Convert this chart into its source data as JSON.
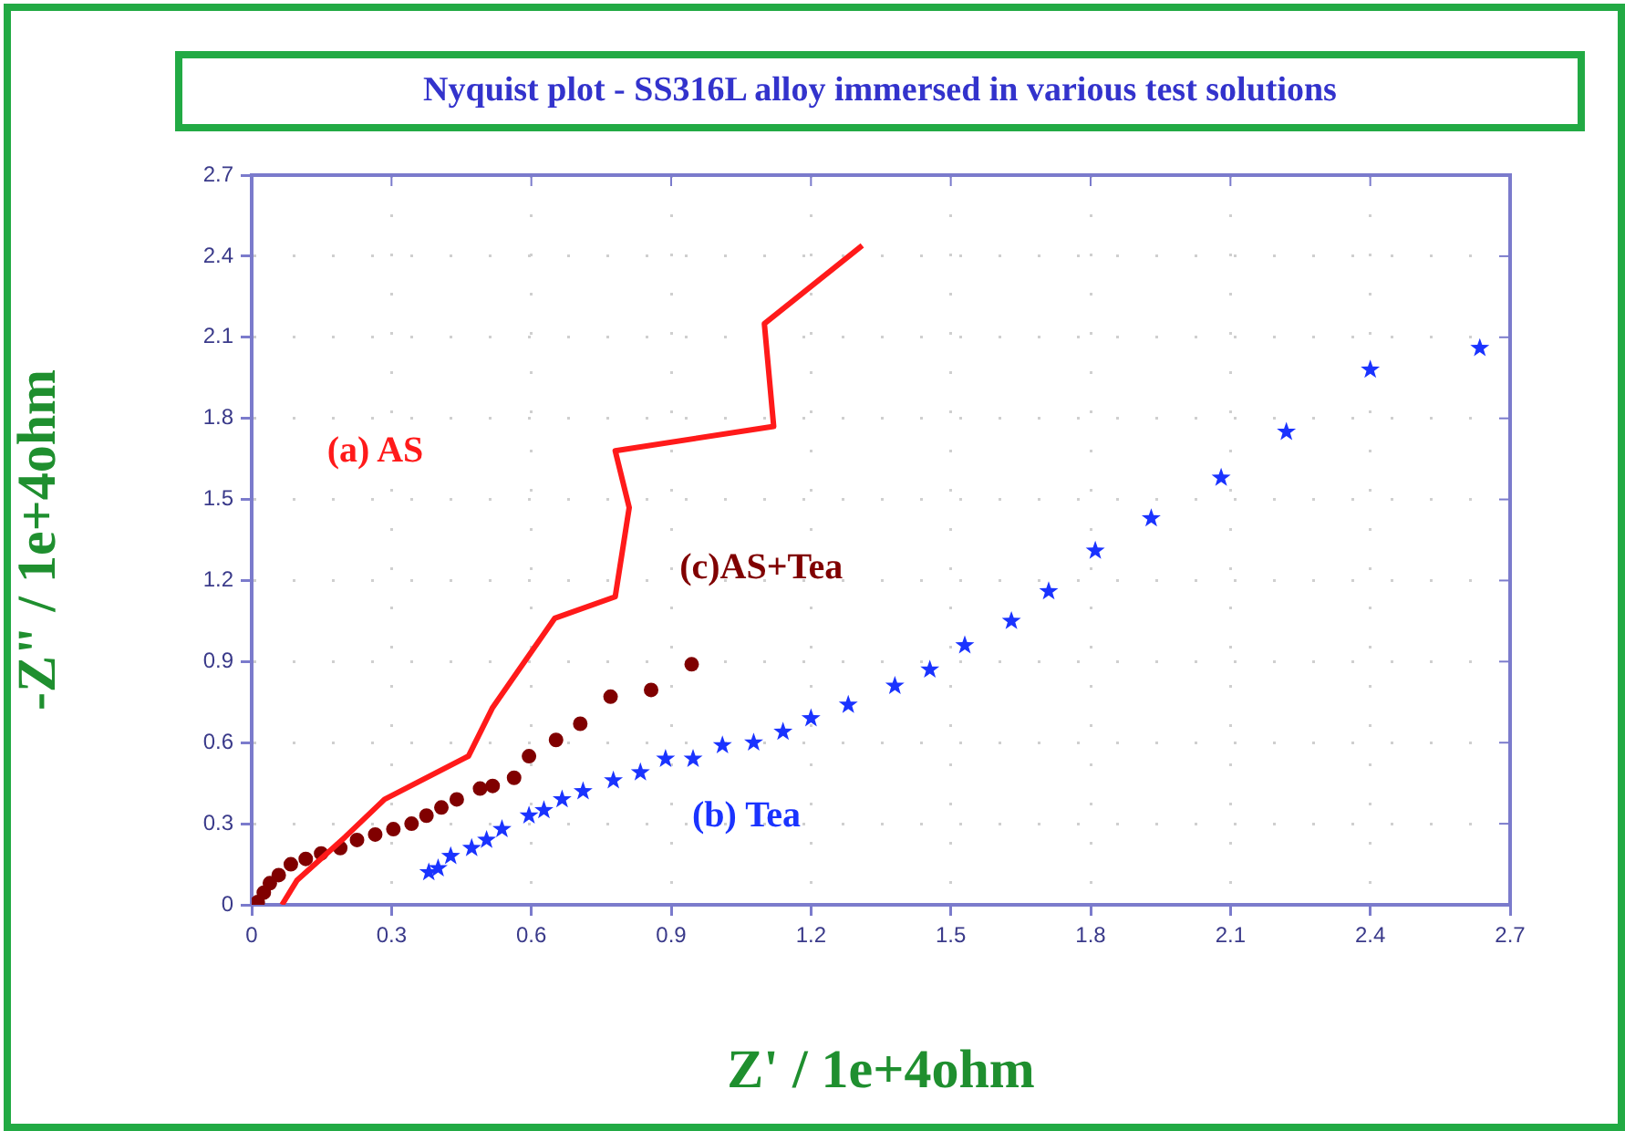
{
  "chart_data": {
    "type": "scatter",
    "title": "Nyquist plot - SS316L alloy immersed in various test solutions",
    "xlabel": "Z' / 1e+4ohm",
    "ylabel": "-Z\" / 1e+4ohm",
    "xlim": [
      0,
      2.7
    ],
    "ylim": [
      0,
      2.7
    ],
    "xticks": [
      0,
      0.3,
      0.6,
      0.9,
      1.2,
      1.5,
      1.8,
      2.1,
      2.4,
      2.7
    ],
    "yticks": [
      0,
      0.3,
      0.6,
      0.9,
      1.2,
      1.5,
      1.8,
      2.1,
      2.4,
      2.7
    ],
    "grid": true,
    "legend": false,
    "series": [
      {
        "name": "(a) AS",
        "type": "line",
        "marker": "none",
        "line_style": "solid",
        "color": "#ff1a1a",
        "x": [
          0.065,
          0.097,
          0.2,
          0.285,
          0.465,
          0.517,
          0.65,
          0.78,
          0.81,
          0.78,
          1.12,
          1.1,
          1.31
        ],
        "values": [
          0,
          0.09,
          0.25,
          0.39,
          0.55,
          0.73,
          1.06,
          1.14,
          1.47,
          1.68,
          1.77,
          2.15,
          2.44
        ]
      },
      {
        "name": "(b) Tea",
        "type": "scatter",
        "marker": "star",
        "color": "#1a33ff",
        "x": [
          0.38,
          0.4,
          0.427,
          0.472,
          0.504,
          0.537,
          0.595,
          0.627,
          0.666,
          0.711,
          0.776,
          0.834,
          0.888,
          0.947,
          1.01,
          1.077,
          1.14,
          1.2,
          1.28,
          1.38,
          1.455,
          1.53,
          1.63,
          1.71,
          1.81,
          1.93,
          2.08,
          2.22,
          2.4,
          2.635
        ],
        "values": [
          0.12,
          0.135,
          0.18,
          0.21,
          0.24,
          0.28,
          0.33,
          0.35,
          0.39,
          0.42,
          0.46,
          0.49,
          0.54,
          0.54,
          0.59,
          0.6,
          0.64,
          0.69,
          0.74,
          0.81,
          0.87,
          0.96,
          1.05,
          1.16,
          1.31,
          1.43,
          1.58,
          1.75,
          1.98,
          2.06
        ]
      },
      {
        "name": "(c)AS+Tea",
        "type": "scatter",
        "marker": "circle",
        "color": "#800000",
        "x": [
          0.013,
          0.026,
          0.039,
          0.058,
          0.084,
          0.116,
          0.149,
          0.19,
          0.226,
          0.265,
          0.304,
          0.343,
          0.375,
          0.407,
          0.44,
          0.49,
          0.517,
          0.563,
          0.595,
          0.653,
          0.705,
          0.77,
          0.857,
          0.944
        ],
        "values": [
          0.01,
          0.045,
          0.08,
          0.11,
          0.15,
          0.17,
          0.19,
          0.21,
          0.24,
          0.26,
          0.28,
          0.3,
          0.33,
          0.36,
          0.39,
          0.43,
          0.44,
          0.47,
          0.55,
          0.61,
          0.67,
          0.77,
          0.795,
          0.89
        ]
      }
    ]
  }
}
